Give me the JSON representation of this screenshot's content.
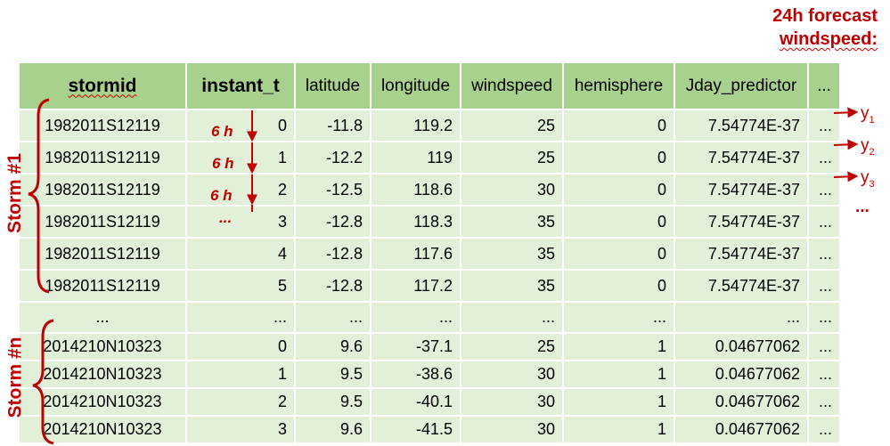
{
  "columns": [
    {
      "label": "stormid",
      "bold": true,
      "wavy": true
    },
    {
      "label": "instant_t",
      "bold": true,
      "wavy": false
    },
    {
      "label": "latitude"
    },
    {
      "label": "longitude"
    },
    {
      "label": "windspeed"
    },
    {
      "label": "hemisphere"
    },
    {
      "label": "Jday_predictor"
    },
    {
      "label": "..."
    }
  ],
  "rows": [
    [
      "1982011S12119",
      "0",
      "-11.8",
      "119.2",
      "25",
      "0",
      "7.54774E-37",
      "..."
    ],
    [
      "1982011S12119",
      "1",
      "-12.2",
      "119",
      "25",
      "0",
      "7.54774E-37",
      "..."
    ],
    [
      "1982011S12119",
      "2",
      "-12.5",
      "118.6",
      "30",
      "0",
      "7.54774E-37",
      "..."
    ],
    [
      "1982011S12119",
      "3",
      "-12.8",
      "118.3",
      "35",
      "0",
      "7.54774E-37",
      "..."
    ],
    [
      "1982011S12119",
      "4",
      "-12.8",
      "117.6",
      "35",
      "0",
      "7.54774E-37",
      "..."
    ],
    [
      "1982011S12119",
      "5",
      "-12.8",
      "117.2",
      "35",
      "0",
      "7.54774E-37",
      "..."
    ],
    [
      "...",
      "...",
      "...",
      "...",
      "...",
      "...",
      "...",
      "..."
    ],
    [
      "2014210N10323",
      "0",
      "9.6",
      "-37.1",
      "25",
      "1",
      "0.04677062",
      "..."
    ],
    [
      "2014210N10323",
      "1",
      "9.5",
      "-38.6",
      "30",
      "1",
      "0.04677062",
      "..."
    ],
    [
      "2014210N10323",
      "2",
      "9.5",
      "-40.1",
      "30",
      "1",
      "0.04677062",
      "..."
    ],
    [
      "2014210N10323",
      "3",
      "9.6",
      "-41.5",
      "30",
      "1",
      "0.04677062",
      "..."
    ]
  ],
  "forecast_label": {
    "line1": "24h forecast",
    "line2": "windspeed:"
  },
  "storm_labels": {
    "first": "Storm #1",
    "last": "Storm #n"
  },
  "lag_labels": [
    "6 h",
    "6 h",
    "6 h",
    "..."
  ],
  "targets": [
    {
      "base": "y",
      "sub": "1"
    },
    {
      "base": "y",
      "sub": "2"
    },
    {
      "base": "y",
      "sub": "3"
    }
  ],
  "targets_more": "...",
  "colors": {
    "header_bg": "#a9d18e",
    "cell_bg": "#e2efd9",
    "accent": "#c00000"
  }
}
